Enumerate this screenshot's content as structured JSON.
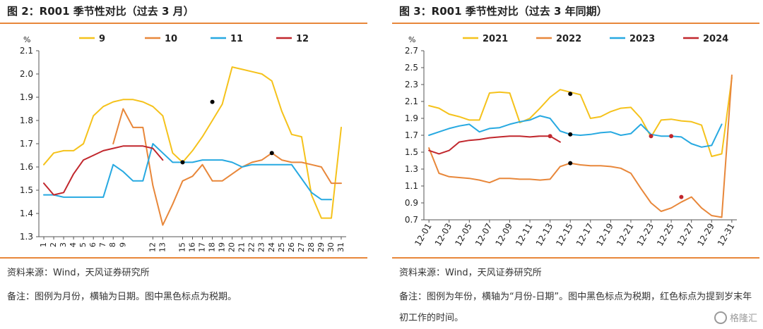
{
  "left": {
    "title": "图 2：R001 季节性对比（过去 3 月）",
    "source": "资料来源：Wind，天风证券研究所",
    "note": "备注：图例为月份，横轴为日期。图中黑色标点为税期。"
  },
  "right": {
    "title": "图 3：R001 季节性对比（过去 3 年同期）",
    "source": "资料来源：Wind，天风证券研究所",
    "note": "备注：图例为年份，横轴为“月份-日期”。图中黑色标点为税期，红色标点为提到岁末年初工作的时间。"
  },
  "watermark": "格隆汇",
  "chart_data": [
    {
      "type": "line",
      "unit_label": "%",
      "categories": [
        "1",
        "2",
        "3",
        "4",
        "5",
        "6",
        "7",
        "8",
        "9",
        "12",
        "13",
        "15",
        "16",
        "17",
        "18",
        "19",
        "20",
        "21",
        "22",
        "23",
        "24",
        "25",
        "26",
        "27",
        "28",
        "29",
        "30",
        "31"
      ],
      "ylim": [
        1.3,
        2.1
      ],
      "yticks": [
        1.3,
        1.4,
        1.5,
        1.6,
        1.7,
        1.8,
        1.9,
        2.0,
        2.1
      ],
      "legend_position": "top",
      "series": [
        {
          "name": "9",
          "color": "#f5c21b",
          "points": [
            [
              1,
              1.61
            ],
            [
              2,
              1.66
            ],
            [
              3,
              1.67
            ],
            [
              4,
              1.67
            ],
            [
              5,
              1.7
            ],
            [
              6,
              1.82
            ],
            [
              7,
              1.86
            ],
            [
              8,
              1.88
            ],
            [
              9,
              1.89
            ],
            [
              10,
              1.89
            ],
            [
              11,
              1.88
            ],
            [
              12,
              1.86
            ],
            [
              13,
              1.82
            ],
            [
              14,
              1.66
            ],
            [
              15,
              1.62
            ],
            [
              16,
              1.67
            ],
            [
              17,
              1.73
            ],
            [
              18,
              1.8
            ],
            [
              19,
              1.87
            ],
            [
              20,
              2.03
            ],
            [
              21,
              2.02
            ],
            [
              22,
              2.01
            ],
            [
              23,
              2.0
            ],
            [
              24,
              1.97
            ],
            [
              25,
              1.84
            ],
            [
              26,
              1.74
            ],
            [
              27,
              1.73
            ],
            [
              28,
              1.48
            ],
            [
              29,
              1.38
            ],
            [
              30,
              1.38
            ],
            [
              31,
              1.77
            ]
          ]
        },
        {
          "name": "10",
          "color": "#e8873a",
          "points": [
            [
              8,
              1.7
            ],
            [
              9,
              1.85
            ],
            [
              10,
              1.77
            ],
            [
              11,
              1.77
            ],
            [
              12,
              1.52
            ],
            [
              13,
              1.35
            ],
            [
              14,
              1.44
            ],
            [
              15,
              1.54
            ],
            [
              16,
              1.56
            ],
            [
              17,
              1.61
            ],
            [
              18,
              1.54
            ],
            [
              19,
              1.54
            ],
            [
              20,
              1.57
            ],
            [
              21,
              1.6
            ],
            [
              22,
              1.62
            ],
            [
              23,
              1.63
            ],
            [
              24,
              1.66
            ],
            [
              25,
              1.63
            ],
            [
              26,
              1.62
            ],
            [
              27,
              1.62
            ],
            [
              28,
              1.61
            ],
            [
              29,
              1.6
            ],
            [
              30,
              1.53
            ],
            [
              31,
              1.53
            ]
          ]
        },
        {
          "name": "11",
          "color": "#27a9e1",
          "points": [
            [
              1,
              1.48
            ],
            [
              2,
              1.48
            ],
            [
              3,
              1.47
            ],
            [
              4,
              1.47
            ],
            [
              5,
              1.47
            ],
            [
              6,
              1.47
            ],
            [
              7,
              1.47
            ],
            [
              8,
              1.61
            ],
            [
              9,
              1.58
            ],
            [
              10,
              1.54
            ],
            [
              11,
              1.54
            ],
            [
              12,
              1.7
            ],
            [
              13,
              1.66
            ],
            [
              14,
              1.62
            ],
            [
              15,
              1.62
            ],
            [
              16,
              1.62
            ],
            [
              17,
              1.63
            ],
            [
              18,
              1.63
            ],
            [
              19,
              1.63
            ],
            [
              20,
              1.62
            ],
            [
              21,
              1.6
            ],
            [
              22,
              1.61
            ],
            [
              23,
              1.61
            ],
            [
              24,
              1.61
            ],
            [
              25,
              1.61
            ],
            [
              26,
              1.61
            ],
            [
              27,
              1.55
            ],
            [
              28,
              1.49
            ],
            [
              29,
              1.46
            ],
            [
              30,
              1.46
            ]
          ]
        },
        {
          "name": "12",
          "color": "#c1272d",
          "points": [
            [
              1,
              1.53
            ],
            [
              2,
              1.48
            ],
            [
              3,
              1.49
            ],
            [
              4,
              1.57
            ],
            [
              5,
              1.63
            ],
            [
              6,
              1.65
            ],
            [
              7,
              1.67
            ],
            [
              8,
              1.68
            ],
            [
              9,
              1.69
            ],
            [
              10,
              1.69
            ],
            [
              11,
              1.69
            ],
            [
              12,
              1.68
            ],
            [
              13,
              1.63
            ]
          ]
        }
      ],
      "markers": [
        {
          "x": 15,
          "y": 1.62,
          "color": "#000000"
        },
        {
          "x": 18,
          "y": 1.88,
          "color": "#000000"
        },
        {
          "x": 24,
          "y": 1.66,
          "color": "#000000"
        }
      ]
    },
    {
      "type": "line",
      "unit_label": "%",
      "categories": [
        "12-01",
        "12-03",
        "12-05",
        "12-07",
        "12-09",
        "12-11",
        "12-13",
        "12-15",
        "12-17",
        "12-19",
        "12-21",
        "12-23",
        "12-25",
        "12-27",
        "12-29",
        "12-31"
      ],
      "ylim": [
        0.7,
        2.7
      ],
      "yticks": [
        0.7,
        0.9,
        1.1,
        1.3,
        1.5,
        1.7,
        1.9,
        2.1,
        2.3,
        2.5,
        2.7
      ],
      "legend_position": "top",
      "series": [
        {
          "name": "2021",
          "color": "#f5c21b",
          "points": [
            [
              1,
              2.05
            ],
            [
              2,
              2.02
            ],
            [
              3,
              1.95
            ],
            [
              4,
              1.92
            ],
            [
              5,
              1.88
            ],
            [
              6,
              1.88
            ],
            [
              7,
              2.2
            ],
            [
              8,
              2.21
            ],
            [
              9,
              2.2
            ],
            [
              10,
              1.85
            ],
            [
              11,
              1.9
            ],
            [
              12,
              2.02
            ],
            [
              13,
              2.15
            ],
            [
              14,
              2.24
            ],
            [
              15,
              2.21
            ],
            [
              16,
              2.18
            ],
            [
              17,
              1.9
            ],
            [
              18,
              1.92
            ],
            [
              19,
              1.98
            ],
            [
              20,
              2.02
            ],
            [
              21,
              2.03
            ],
            [
              22,
              1.9
            ],
            [
              23,
              1.68
            ],
            [
              24,
              1.88
            ],
            [
              25,
              1.89
            ],
            [
              26,
              1.87
            ],
            [
              27,
              1.86
            ],
            [
              28,
              1.82
            ],
            [
              29,
              1.45
            ],
            [
              30,
              1.48
            ],
            [
              31,
              2.38
            ]
          ]
        },
        {
          "name": "2022",
          "color": "#e8873a",
          "points": [
            [
              1,
              1.55
            ],
            [
              2,
              1.25
            ],
            [
              3,
              1.21
            ],
            [
              4,
              1.2
            ],
            [
              5,
              1.19
            ],
            [
              6,
              1.17
            ],
            [
              7,
              1.14
            ],
            [
              8,
              1.19
            ],
            [
              9,
              1.19
            ],
            [
              10,
              1.18
            ],
            [
              11,
              1.18
            ],
            [
              12,
              1.17
            ],
            [
              13,
              1.18
            ],
            [
              14,
              1.33
            ],
            [
              15,
              1.37
            ],
            [
              16,
              1.35
            ],
            [
              17,
              1.34
            ],
            [
              18,
              1.34
            ],
            [
              19,
              1.33
            ],
            [
              20,
              1.31
            ],
            [
              21,
              1.25
            ],
            [
              22,
              1.07
            ],
            [
              23,
              0.9
            ],
            [
              24,
              0.8
            ],
            [
              25,
              0.84
            ],
            [
              26,
              0.91
            ],
            [
              27,
              0.97
            ],
            [
              28,
              0.84
            ],
            [
              29,
              0.75
            ],
            [
              30,
              0.73
            ],
            [
              31,
              2.41
            ]
          ]
        },
        {
          "name": "2023",
          "color": "#27a9e1",
          "points": [
            [
              1,
              1.7
            ],
            [
              2,
              1.74
            ],
            [
              3,
              1.78
            ],
            [
              4,
              1.81
            ],
            [
              5,
              1.83
            ],
            [
              6,
              1.74
            ],
            [
              7,
              1.78
            ],
            [
              8,
              1.79
            ],
            [
              9,
              1.83
            ],
            [
              10,
              1.86
            ],
            [
              11,
              1.88
            ],
            [
              12,
              1.93
            ],
            [
              13,
              1.9
            ],
            [
              14,
              1.75
            ],
            [
              15,
              1.71
            ],
            [
              16,
              1.7
            ],
            [
              17,
              1.71
            ],
            [
              18,
              1.73
            ],
            [
              19,
              1.74
            ],
            [
              20,
              1.7
            ],
            [
              21,
              1.72
            ],
            [
              22,
              1.83
            ],
            [
              23,
              1.71
            ],
            [
              24,
              1.69
            ],
            [
              25,
              1.69
            ],
            [
              26,
              1.68
            ],
            [
              27,
              1.6
            ],
            [
              28,
              1.56
            ],
            [
              29,
              1.58
            ],
            [
              30,
              1.83
            ]
          ]
        },
        {
          "name": "2024",
          "color": "#c1272d",
          "points": [
            [
              1,
              1.52
            ],
            [
              2,
              1.48
            ],
            [
              3,
              1.52
            ],
            [
              4,
              1.62
            ],
            [
              5,
              1.64
            ],
            [
              6,
              1.65
            ],
            [
              7,
              1.67
            ],
            [
              8,
              1.68
            ],
            [
              9,
              1.69
            ],
            [
              10,
              1.69
            ],
            [
              11,
              1.68
            ],
            [
              12,
              1.69
            ],
            [
              13,
              1.69
            ],
            [
              14,
              1.62
            ]
          ]
        }
      ],
      "markers": [
        {
          "x": 15,
          "y": 2.19,
          "color": "#000000"
        },
        {
          "x": 15,
          "y": 1.71,
          "color": "#000000"
        },
        {
          "x": 15,
          "y": 1.37,
          "color": "#000000"
        },
        {
          "x": 13,
          "y": 1.69,
          "color": "#c1272d"
        },
        {
          "x": 23,
          "y": 1.69,
          "color": "#c1272d"
        },
        {
          "x": 25,
          "y": 1.69,
          "color": "#c1272d"
        },
        {
          "x": 26,
          "y": 0.97,
          "color": "#c1272d"
        }
      ]
    }
  ]
}
